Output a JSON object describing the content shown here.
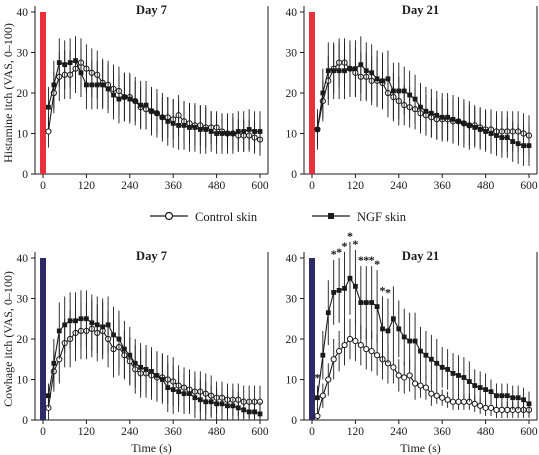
{
  "figure": {
    "legend": {
      "items": [
        {
          "label": "Control skin",
          "marker": "open-circle"
        },
        {
          "label": "NGF skin",
          "marker": "filled-square"
        }
      ]
    },
    "colors": {
      "histamine_bar": "#e8313a",
      "cowhage_bar": "#2e2a6a",
      "line": "#1a1a1a"
    }
  },
  "chart_data": [
    {
      "type": "line",
      "title": "Day 7",
      "xlabel": "",
      "ylabel": "Histamine itch (VAS, 0–100)",
      "xlim": [
        0,
        600
      ],
      "ylim": [
        0,
        40
      ],
      "xticks": [
        0,
        120,
        240,
        360,
        480,
        600
      ],
      "yticks": [
        0,
        10,
        20,
        30,
        40
      ],
      "x": [
        15,
        30,
        45,
        60,
        75,
        90,
        105,
        120,
        135,
        150,
        165,
        180,
        195,
        210,
        225,
        240,
        255,
        270,
        285,
        300,
        315,
        330,
        345,
        360,
        375,
        390,
        405,
        420,
        435,
        450,
        465,
        480,
        495,
        510,
        525,
        540,
        555,
        570,
        585,
        600
      ],
      "stimulus_bar": {
        "value": 40,
        "color": "#e8313a"
      },
      "series": [
        {
          "name": "Control skin",
          "marker": "open-circle",
          "values": [
            10.5,
            20,
            24,
            24.5,
            24.5,
            26,
            27.5,
            26,
            25,
            24.5,
            22.5,
            22,
            21,
            20.5,
            19,
            19,
            18,
            16.5,
            16,
            15.5,
            15,
            14,
            14,
            13.5,
            14.5,
            13,
            12.5,
            12,
            12,
            11.5,
            11.5,
            11.5,
            10.5,
            10,
            10,
            9.5,
            9.5,
            9.5,
            9,
            8.5
          ],
          "error": [
            4,
            5,
            6,
            6,
            6,
            6,
            6,
            6,
            6,
            6,
            6,
            6,
            6,
            6,
            6,
            6,
            5,
            5,
            5,
            5,
            5,
            5,
            5,
            5,
            5,
            5,
            5,
            5,
            5,
            5,
            4,
            4,
            4,
            4,
            4,
            4,
            4,
            4,
            4,
            4
          ]
        },
        {
          "name": "NGF skin",
          "marker": "filled-square",
          "values": [
            16.5,
            22,
            27.5,
            27,
            27.5,
            28,
            25,
            22,
            22,
            22,
            22,
            21,
            19.5,
            18.5,
            19,
            18.5,
            18,
            17,
            17,
            15.5,
            15,
            14,
            13,
            12.5,
            12,
            12,
            11.5,
            11.5,
            11,
            11,
            10.5,
            10,
            10,
            10,
            10,
            10.5,
            10.5,
            11,
            10.5,
            10.5
          ],
          "error": [
            5,
            6,
            6,
            6,
            6,
            6,
            6,
            6,
            6,
            6,
            6,
            6,
            6,
            6,
            6,
            6,
            6,
            6,
            6,
            6,
            6,
            6,
            6,
            6,
            6,
            6,
            6,
            6,
            6,
            6,
            5,
            5,
            5,
            5,
            5,
            5,
            5,
            5,
            5,
            5
          ]
        }
      ]
    },
    {
      "type": "line",
      "title": "Day 21",
      "xlabel": "",
      "ylabel": "",
      "xlim": [
        0,
        600
      ],
      "ylim": [
        0,
        40
      ],
      "xticks": [
        0,
        120,
        240,
        360,
        480,
        600
      ],
      "yticks": [
        0,
        10,
        20,
        30,
        40
      ],
      "x": [
        15,
        30,
        45,
        60,
        75,
        90,
        105,
        120,
        135,
        150,
        165,
        180,
        195,
        210,
        225,
        240,
        255,
        270,
        285,
        300,
        315,
        330,
        345,
        360,
        375,
        390,
        405,
        420,
        435,
        450,
        465,
        480,
        495,
        510,
        525,
        540,
        555,
        570,
        585,
        600
      ],
      "stimulus_bar": {
        "value": 40,
        "color": "#e8313a"
      },
      "series": [
        {
          "name": "Control skin",
          "marker": "open-circle",
          "values": [
            11,
            18,
            23,
            26,
            27.5,
            27.5,
            26,
            25,
            24,
            24,
            23,
            23,
            22.5,
            20,
            19,
            18,
            17,
            16.5,
            16,
            15,
            14.5,
            14,
            13.5,
            13.5,
            13.5,
            13,
            13,
            12.5,
            12,
            12,
            11.5,
            11,
            11,
            10.5,
            10.5,
            10.5,
            10.5,
            10.5,
            10,
            9.5
          ],
          "error": [
            4,
            5,
            6,
            6,
            6,
            6,
            6,
            6,
            6,
            6,
            6,
            6,
            6,
            6,
            6,
            6,
            5,
            5,
            5,
            5,
            5,
            5,
            5,
            5,
            5,
            5,
            5,
            5,
            5,
            5,
            5,
            5,
            5,
            5,
            5,
            5,
            5,
            5,
            5,
            5
          ]
        },
        {
          "name": "NGF skin",
          "marker": "filled-square",
          "values": [
            11,
            20,
            25.5,
            25.5,
            25.5,
            25.5,
            26,
            26,
            27,
            25.5,
            25,
            23.5,
            23,
            23.5,
            20.5,
            20.5,
            20.5,
            19.5,
            18.5,
            16.5,
            15.5,
            15,
            14.5,
            14,
            14,
            13.5,
            13,
            12.5,
            12,
            11.5,
            11,
            10.5,
            10,
            9.5,
            9,
            9,
            8,
            7.5,
            7,
            7
          ],
          "error": [
            5,
            6,
            7,
            7,
            7,
            7,
            7,
            7,
            7,
            7,
            7,
            7,
            7,
            7,
            7,
            7,
            6,
            6,
            6,
            6,
            6,
            6,
            6,
            6,
            6,
            6,
            6,
            6,
            6,
            5,
            5,
            5,
            5,
            5,
            5,
            5,
            5,
            5,
            5,
            5
          ]
        }
      ]
    },
    {
      "type": "line",
      "title": "Day 7",
      "xlabel": "Time (s)",
      "ylabel": "Cowhage itch (VAS, 0–100)",
      "xlim": [
        0,
        600
      ],
      "ylim": [
        0,
        40
      ],
      "xticks": [
        0,
        120,
        240,
        360,
        480,
        600
      ],
      "yticks": [
        0,
        10,
        20,
        30,
        40
      ],
      "x": [
        15,
        30,
        45,
        60,
        75,
        90,
        105,
        120,
        135,
        150,
        165,
        180,
        195,
        210,
        225,
        240,
        255,
        270,
        285,
        300,
        315,
        330,
        345,
        360,
        375,
        390,
        405,
        420,
        435,
        450,
        465,
        480,
        495,
        510,
        525,
        540,
        555,
        570,
        585,
        600
      ],
      "stimulus_bar": {
        "value": 40,
        "color": "#2e2a6a"
      },
      "series": [
        {
          "name": "Control skin",
          "marker": "open-circle",
          "values": [
            3,
            12,
            15,
            19,
            20,
            21.5,
            22,
            22,
            22.5,
            21.5,
            22,
            20,
            17.5,
            18,
            16,
            14.5,
            12.5,
            11.5,
            11.5,
            11,
            10.5,
            10.5,
            10,
            9.5,
            8.5,
            8,
            7.5,
            7,
            7,
            6.5,
            6,
            5.5,
            5.5,
            5,
            5,
            5,
            4.5,
            4.5,
            4.5,
            4.5
          ],
          "error": [
            3,
            5,
            6,
            6,
            7,
            7,
            7,
            7,
            7,
            7,
            7,
            7,
            7,
            7,
            6,
            6,
            6,
            6,
            6,
            6,
            6,
            6,
            6,
            6,
            5,
            5,
            5,
            5,
            5,
            5,
            5,
            4,
            4,
            4,
            4,
            4,
            4,
            4,
            4,
            4
          ]
        },
        {
          "name": "NGF skin",
          "marker": "filled-square",
          "values": [
            6,
            14,
            22,
            23.5,
            24.5,
            24.5,
            25,
            25,
            24,
            23.5,
            23,
            23.5,
            21,
            20,
            17.5,
            16,
            14,
            13,
            12.5,
            12,
            11,
            10,
            8,
            7.5,
            7,
            6.5,
            6.5,
            5.5,
            5,
            4.5,
            4.5,
            4,
            4,
            3.5,
            3.5,
            3,
            2.5,
            2,
            2,
            1.5
          ],
          "error": [
            3,
            6,
            7,
            7,
            7,
            7,
            7,
            7,
            7,
            7,
            7,
            7,
            7,
            7,
            7,
            7,
            6,
            6,
            6,
            6,
            6,
            6,
            6,
            6,
            5,
            5,
            5,
            5,
            5,
            5,
            4,
            4,
            4,
            4,
            4,
            4,
            3,
            3,
            3,
            3
          ]
        }
      ]
    },
    {
      "type": "line",
      "title": "Day 21",
      "xlabel": "Time (s)",
      "ylabel": "",
      "xlim": [
        0,
        600
      ],
      "ylim": [
        0,
        40
      ],
      "xticks": [
        0,
        120,
        240,
        360,
        480,
        600
      ],
      "yticks": [
        0,
        10,
        20,
        30,
        40
      ],
      "x": [
        15,
        30,
        45,
        60,
        75,
        90,
        105,
        120,
        135,
        150,
        165,
        180,
        195,
        210,
        225,
        240,
        255,
        270,
        285,
        300,
        315,
        330,
        345,
        360,
        375,
        390,
        405,
        420,
        435,
        450,
        465,
        480,
        495,
        510,
        525,
        540,
        555,
        570,
        585,
        600
      ],
      "stimulus_bar": {
        "value": 40,
        "color": "#2e2a6a"
      },
      "annotations": {
        "symbol": "*",
        "x": [
          15,
          60,
          75,
          90,
          105,
          120,
          135,
          150,
          165,
          180,
          195,
          210
        ]
      },
      "series": [
        {
          "name": "Control skin",
          "marker": "open-circle",
          "values": [
            1,
            6,
            10,
            15,
            17,
            18.5,
            20,
            19.5,
            18.5,
            17.5,
            17,
            16,
            15,
            14,
            13,
            11,
            10.5,
            11,
            9,
            8.5,
            8,
            6.5,
            6,
            5.5,
            5,
            4.5,
            4.5,
            4.5,
            4.5,
            4,
            3.5,
            3,
            3,
            2.5,
            2.5,
            2.5,
            2.5,
            2.5,
            2.5,
            2.5
          ],
          "error": [
            2,
            3,
            4,
            5,
            5,
            5,
            5,
            5,
            5,
            5,
            5,
            5,
            5,
            5,
            4,
            4,
            4,
            4,
            4,
            3,
            3,
            3,
            2,
            2,
            2,
            2,
            2,
            2,
            2,
            2,
            2,
            2,
            2,
            2,
            2,
            2,
            2,
            2,
            2,
            2
          ]
        },
        {
          "name": "NGF skin",
          "marker": "filled-square",
          "values": [
            5.5,
            16,
            26.5,
            31.5,
            32,
            32.5,
            35,
            33,
            29,
            29,
            29,
            28,
            22.5,
            22,
            25,
            22.5,
            20.5,
            19.5,
            19.5,
            17,
            16,
            15,
            14,
            13,
            12.5,
            11.5,
            11,
            10.5,
            9.5,
            8.5,
            8,
            7.5,
            7,
            6,
            6,
            6,
            5.5,
            5.5,
            5,
            4
          ],
          "error": [
            3,
            6,
            8,
            8,
            8,
            9,
            9,
            9,
            9,
            9,
            9,
            9,
            8,
            8,
            8,
            7,
            7,
            7,
            7,
            6,
            6,
            6,
            6,
            5,
            5,
            5,
            5,
            5,
            5,
            4,
            4,
            4,
            3,
            3,
            3,
            3,
            3,
            3,
            3,
            3
          ]
        }
      ]
    }
  ]
}
